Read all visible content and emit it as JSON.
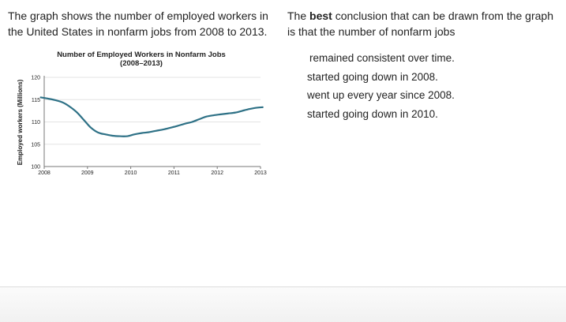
{
  "stem": {
    "text": "The graph shows the number of employed workers in the United States in nonfarm jobs from 2008 to 2013."
  },
  "question": {
    "prefix": "The ",
    "bold": "best",
    "suffix": " conclusion that can be drawn from the graph is that the number of nonfarm jobs"
  },
  "choices": [
    {
      "label": "remained consistent over time."
    },
    {
      "label": "started going down in 2008."
    },
    {
      "label": "went up every year since 2008."
    },
    {
      "label": "started going down in 2010."
    }
  ],
  "colors": {
    "line": "#2e7186",
    "grid": "#e3e3e3",
    "axis": "#777777",
    "text": "#222222"
  },
  "chart_data": {
    "type": "line",
    "title": "Number of Employed Workers in Nonfarm Jobs",
    "subtitle": "(2008–2013)",
    "xlabel": "",
    "ylabel": "Employed workers (Millions)",
    "xlim": [
      2008,
      2013
    ],
    "ylim": [
      100,
      120
    ],
    "xticks": [
      "2008",
      "2009",
      "2010",
      "2011",
      "2012",
      "2013"
    ],
    "yticks": [
      "100",
      "105",
      "110",
      "115",
      "120"
    ],
    "grid": true,
    "series": [
      {
        "x": [
          2007.92,
          2008.1,
          2008.25,
          2008.42,
          2008.58,
          2008.75,
          2008.92,
          2009.08,
          2009.25,
          2009.42,
          2009.58,
          2009.75,
          2009.92,
          2010.08,
          2010.25,
          2010.42,
          2010.58,
          2010.75,
          2010.92,
          2011.08,
          2011.25,
          2011.42,
          2011.58,
          2011.75,
          2011.92,
          2012.08,
          2012.25,
          2012.42,
          2012.58,
          2012.75,
          2012.92,
          2013.05
        ],
        "y": [
          115.5,
          115.2,
          114.9,
          114.4,
          113.5,
          112.2,
          110.4,
          108.7,
          107.6,
          107.2,
          106.9,
          106.8,
          106.8,
          107.2,
          107.5,
          107.7,
          108.0,
          108.3,
          108.7,
          109.1,
          109.6,
          110.0,
          110.6,
          111.2,
          111.5,
          111.7,
          111.9,
          112.1,
          112.5,
          112.9,
          113.2,
          113.3
        ]
      }
    ]
  }
}
